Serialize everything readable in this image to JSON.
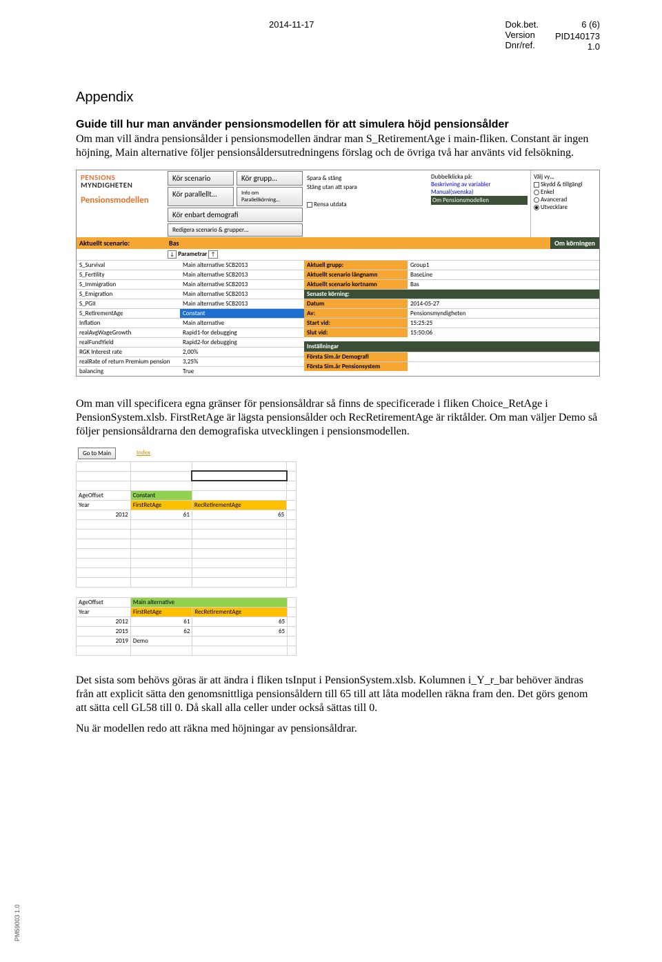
{
  "header": {
    "date": "2014-11-17",
    "dokbet_lbl": "Dok.bet.",
    "dokbet_val": "PID140173",
    "version_lbl": "Version",
    "version_val": "1.0",
    "dnrref_lbl": "Dnr/ref.",
    "page": "6 (6)"
  },
  "title_appendix": "Appendix",
  "title_sub": "Guide till hur man använder pensionsmodellen för att simulera höjd pensionsålder",
  "para1": "Om man vill ändra pensionsålder i pensionsmodellen ändrar man S_RetirementAge i main-fliken. Constant är ingen höjning, Main alternative följer pensionsåldersutredningens förslag och de övriga två har använts vid felsökning.",
  "para2": "Om man vill specificera egna gränser för pensionsåldrar så finns de specificerade i fliken Choice_RetAge i PensionSystem.xlsb. FirstRetAge är lägsta pensionsålder och RecRetirementAge är riktålder. Om man väljer Demo så följer pensionsåldrarna den demografiska utvecklingen i pensionsmodellen.",
  "para3": "Det sista som behövs göras är att ändra i fliken tsInput i PensionSystem.xlsb. Kolumnen i_Y_r_bar behöver ändras från att explicit sätta den genomsnittliga pensionsåldern till 65 till att låta modellen räkna fram den. Det görs genom att sätta cell GL58 till 0. Då skall alla celler under också sättas till 0.",
  "para4": "Nu är modellen redo att räkna med höjningar av pensionsåldrar.",
  "footer_id": "PM59003 1.0",
  "ss1": {
    "logo1": "PENSIONS",
    "logo2": "MYNDIGHETEN",
    "logo3": "Pensionsmodellen",
    "btn_kor_scenario": "Kör scenario",
    "btn_kor_grupp": "Kör grupp…",
    "btn_kor_parallellt": "Kör parallellt…",
    "btn_info": "Info om Parallellkörning…",
    "btn_demo": "Kör enbart demografi",
    "btn_redigera": "Redigera scenario & grupper…",
    "spara_stang": "Spara & stäng",
    "stang_utan": "Stäng utan att spara",
    "rensa": "Rensa utdata",
    "dblclick": "Dubbelklicka på:",
    "beskrivning": "Beskrivning av variabler",
    "manual": "Manual(svenska)",
    "om_modellen": "Om Pensionsmodellen",
    "valj_vy": "Välj vy…",
    "skydd": "Skydd & tillgängl",
    "r_enkel": "Enkel",
    "r_avancerad": "Avancerad",
    "r_utvecklare": "Utvecklare",
    "aktuellt_scenario": "Aktuellt scenario:",
    "bas": "Bas",
    "om_korningen": "Om körningen",
    "parametrar": "Parametrar",
    "params": [
      {
        "k": "S_Survival",
        "v": "Main alternative SCB2013"
      },
      {
        "k": "S_Fertility",
        "v": "Main alternative SCB2013"
      },
      {
        "k": "S_Immigration",
        "v": "Main alternative SCB2013"
      },
      {
        "k": "S_Emigration",
        "v": "Main alternative SCB2013"
      },
      {
        "k": "S_PGII",
        "v": "Main alternative SCB2013"
      },
      {
        "k": "S_RetirementAge",
        "v": "Constant"
      },
      {
        "k": "Inflation",
        "v": "Main alternative"
      },
      {
        "k": "realAvgWageGrowth",
        "v": "Rapid1-for debugging"
      },
      {
        "k": "realFundYield",
        "v": "Rapid2-for debugging"
      },
      {
        "k": "RGK Interest rate",
        "v": "2,00%"
      },
      {
        "k": "realRate of return Premium pension",
        "v": "3,25%"
      },
      {
        "k": "balancing",
        "v": "True"
      }
    ],
    "aktuell_grupp_k": "Aktuell grupp:",
    "aktuell_grupp_v": "Group1",
    "langnamn_k": "Aktuellt scenario långnamn",
    "langnamn_v": "BaseLine",
    "kortnamn_k": "Aktuellt scenario kortnamn",
    "kortnamn_v": "Bas",
    "senaste": "Senaste körning:",
    "datum_k": "Datum",
    "datum_v": "2014-05-27",
    "av_k": "Av:",
    "av_v": "Pensionsmyndigheten",
    "start_k": "Start vid:",
    "start_v": "15:25:25",
    "slut_k": "Slut vid:",
    "slut_v": "15:50:06",
    "installningar": "Inställningar",
    "forsta_demo": "Första Sim.år Demografi",
    "forsta_pension": "Första Sim.år Pensionsystem"
  },
  "ss2a": {
    "goto": "Go to Main",
    "index": "Index",
    "ageoffset": "AgeOffset",
    "constant": "Constant",
    "year": "Year",
    "firstret": "FirstRetAge",
    "recret": "RecRetirementAge",
    "y": "2012",
    "f": "61",
    "r": "65"
  },
  "ss2b": {
    "ageoffset": "AgeOffset",
    "mainalt": "Main alternative",
    "year": "Year",
    "firstret": "FirstRetAge",
    "recret": "RecRetirementAge",
    "rows": [
      {
        "y": "2012",
        "f": "61",
        "r": "65"
      },
      {
        "y": "2015",
        "f": "62",
        "r": "65"
      },
      {
        "y": "2019",
        "f": "Demo",
        "r": ""
      }
    ]
  }
}
